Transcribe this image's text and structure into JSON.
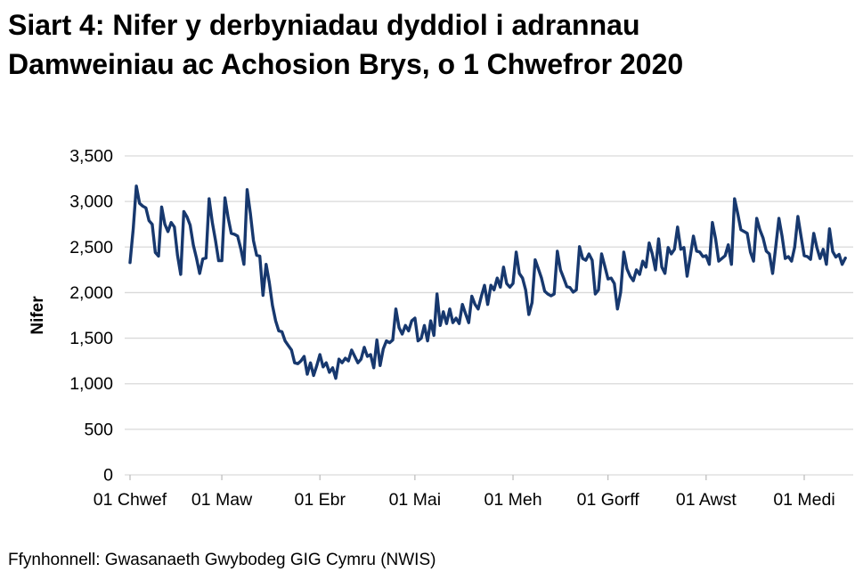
{
  "header": {
    "title_line1": "Siart 4: Nifer y derbyniadau dyddiol i adrannau",
    "title_line2": "Damweiniau ac Achosion Brys, o 1 Chwefror 2020"
  },
  "footer": {
    "source": "Ffynhonnell: Gwasanaeth Gwybodeg GIG Cymru (NWIS)"
  },
  "chart_data": {
    "type": "line",
    "title": "Siart 4: Nifer y derbyniadau dyddiol i adrannau Damweiniau ac Achosion Brys, o 1 Chwefror 2020",
    "xlabel": "",
    "ylabel": "Nifer",
    "ylim": [
      0,
      3500
    ],
    "grid": true,
    "legend": false,
    "colors": {
      "line": "#17386e",
      "gridline": "#d9d9d9",
      "tick": "#bfbfbf",
      "text": "#000000"
    },
    "y_ticks": [
      {
        "v": 0,
        "label": "0"
      },
      {
        "v": 500,
        "label": "500"
      },
      {
        "v": 1000,
        "label": "1,000"
      },
      {
        "v": 1500,
        "label": "1,500"
      },
      {
        "v": 2000,
        "label": "2,000"
      },
      {
        "v": 2500,
        "label": "2,500"
      },
      {
        "v": 3000,
        "label": "3,000"
      },
      {
        "v": 3500,
        "label": "3,500"
      }
    ],
    "x_ticks": [
      {
        "day": 0,
        "label": "01 Chwef"
      },
      {
        "day": 29,
        "label": "01 Maw"
      },
      {
        "day": 60,
        "label": "01 Ebr"
      },
      {
        "day": 90,
        "label": "01 Mai"
      },
      {
        "day": 121,
        "label": "01 Meh"
      },
      {
        "day": 151,
        "label": "01 Gorff"
      },
      {
        "day": 182,
        "label": "01 Awst"
      },
      {
        "day": 213,
        "label": "01 Medi"
      }
    ],
    "series": [
      {
        "name": "Derbyniadau dyddiol",
        "start_day_label": "01 Chwef 2020",
        "values": [
          2330,
          2700,
          3170,
          2980,
          2950,
          2930,
          2790,
          2750,
          2440,
          2400,
          2940,
          2750,
          2670,
          2770,
          2720,
          2410,
          2200,
          2890,
          2830,
          2740,
          2520,
          2380,
          2210,
          2370,
          2380,
          3030,
          2770,
          2570,
          2350,
          2350,
          3040,
          2820,
          2650,
          2640,
          2620,
          2480,
          2310,
          3130,
          2870,
          2570,
          2410,
          2400,
          1970,
          2310,
          2110,
          1860,
          1690,
          1580,
          1570,
          1470,
          1420,
          1370,
          1230,
          1220,
          1250,
          1300,
          1105,
          1230,
          1090,
          1200,
          1320,
          1185,
          1230,
          1125,
          1175,
          1060,
          1270,
          1230,
          1280,
          1250,
          1370,
          1300,
          1230,
          1270,
          1400,
          1300,
          1320,
          1175,
          1480,
          1200,
          1380,
          1470,
          1450,
          1480,
          1820,
          1615,
          1545,
          1640,
          1580,
          1690,
          1720,
          1470,
          1500,
          1640,
          1470,
          1690,
          1530,
          1985,
          1640,
          1790,
          1660,
          1820,
          1670,
          1720,
          1660,
          1870,
          1770,
          1670,
          1960,
          1870,
          1820,
          1960,
          2080,
          1870,
          2080,
          2030,
          2160,
          2060,
          2280,
          2100,
          2060,
          2100,
          2445,
          2210,
          2160,
          2030,
          1760,
          1890,
          2360,
          2260,
          2160,
          2015,
          1985,
          1965,
          1985,
          2455,
          2250,
          2160,
          2065,
          2055,
          2005,
          2030,
          2505,
          2375,
          2355,
          2425,
          2355,
          1985,
          2030,
          2425,
          2290,
          2150,
          2160,
          2100,
          1820,
          2005,
          2445,
          2260,
          2180,
          2130,
          2250,
          2200,
          2345,
          2280,
          2545,
          2425,
          2250,
          2590,
          2280,
          2210,
          2495,
          2425,
          2475,
          2720,
          2475,
          2495,
          2180,
          2400,
          2620,
          2455,
          2445,
          2395,
          2405,
          2310,
          2770,
          2590,
          2345,
          2375,
          2405,
          2525,
          2310,
          3030,
          2865,
          2690,
          2670,
          2650,
          2445,
          2345,
          2815,
          2690,
          2600,
          2455,
          2425,
          2210,
          2500,
          2815,
          2620,
          2375,
          2395,
          2345,
          2500,
          2835,
          2620,
          2405,
          2395,
          2365,
          2650,
          2495,
          2375,
          2475,
          2310,
          2700,
          2450,
          2390,
          2420,
          2310,
          2380
        ]
      }
    ]
  }
}
